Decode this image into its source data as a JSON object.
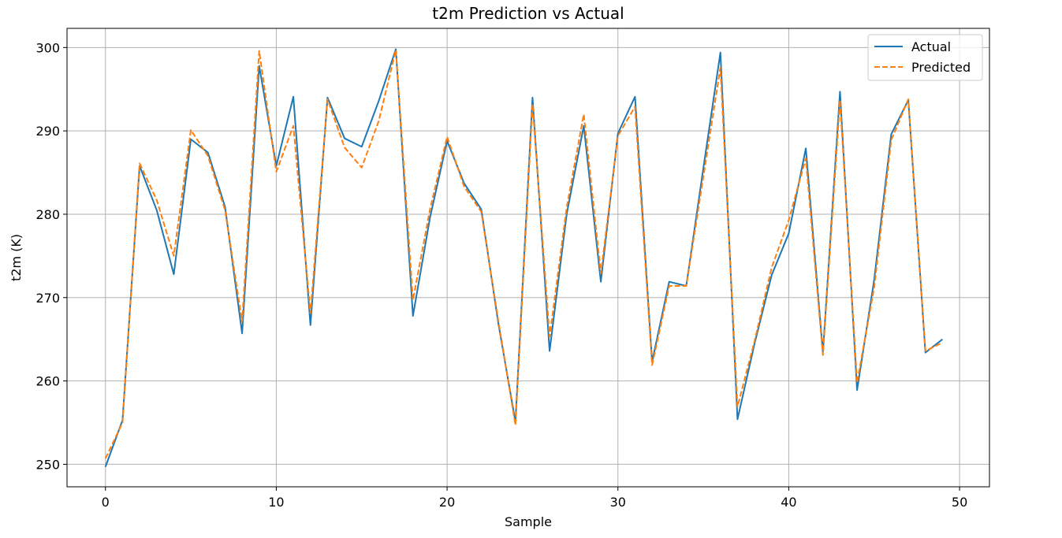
{
  "chart_data": {
    "type": "line",
    "title": "t2m Prediction vs Actual",
    "xlabel": "Sample",
    "ylabel": "t2m (K)",
    "xlim": [
      -2.25,
      51.75
    ],
    "ylim": [
      247.3,
      302.3
    ],
    "xticks": [
      0,
      10,
      20,
      30,
      40,
      50
    ],
    "yticks": [
      250,
      260,
      270,
      280,
      290,
      300
    ],
    "grid": true,
    "legend_position": "top-right",
    "x": [
      0,
      1,
      2,
      3,
      4,
      5,
      6,
      7,
      8,
      9,
      10,
      11,
      12,
      13,
      14,
      15,
      16,
      17,
      18,
      19,
      20,
      21,
      22,
      23,
      24,
      25,
      26,
      27,
      28,
      29,
      30,
      31,
      32,
      33,
      34,
      35,
      36,
      37,
      38,
      39,
      40,
      41,
      42,
      43,
      44,
      45,
      46,
      47,
      48,
      49
    ],
    "series": [
      {
        "name": "Actual",
        "color": "#1f77b4",
        "style": "solid",
        "values": [
          249.7,
          255.3,
          285.8,
          280.5,
          272.8,
          289.0,
          287.4,
          280.9,
          265.7,
          297.8,
          285.8,
          294.1,
          266.7,
          294.0,
          289.1,
          288.1,
          293.6,
          299.8,
          267.8,
          279.6,
          288.8,
          283.7,
          280.6,
          266.9,
          255.1,
          294.0,
          263.6,
          280.0,
          290.6,
          271.9,
          289.7,
          294.1,
          262.3,
          271.9,
          271.4,
          285.5,
          299.4,
          255.4,
          264.5,
          272.7,
          277.7,
          287.9,
          263.4,
          294.7,
          258.9,
          272.1,
          289.6,
          293.7,
          263.4,
          265.0
        ]
      },
      {
        "name": "Predicted",
        "color": "#ff7f0e",
        "style": "dashed",
        "values": [
          250.7,
          255.0,
          286.1,
          281.7,
          275.0,
          290.1,
          287.0,
          280.5,
          267.1,
          299.6,
          285.1,
          290.6,
          268.1,
          293.8,
          288.0,
          285.6,
          291.2,
          299.7,
          269.7,
          280.6,
          289.3,
          283.3,
          280.3,
          267.2,
          254.7,
          293.2,
          265.3,
          280.8,
          292.0,
          272.9,
          289.4,
          292.9,
          261.9,
          271.4,
          271.4,
          284.5,
          297.6,
          256.9,
          264.8,
          273.6,
          279.3,
          286.7,
          263.1,
          293.7,
          259.8,
          271.2,
          288.9,
          293.8,
          263.6,
          264.6
        ]
      }
    ]
  }
}
